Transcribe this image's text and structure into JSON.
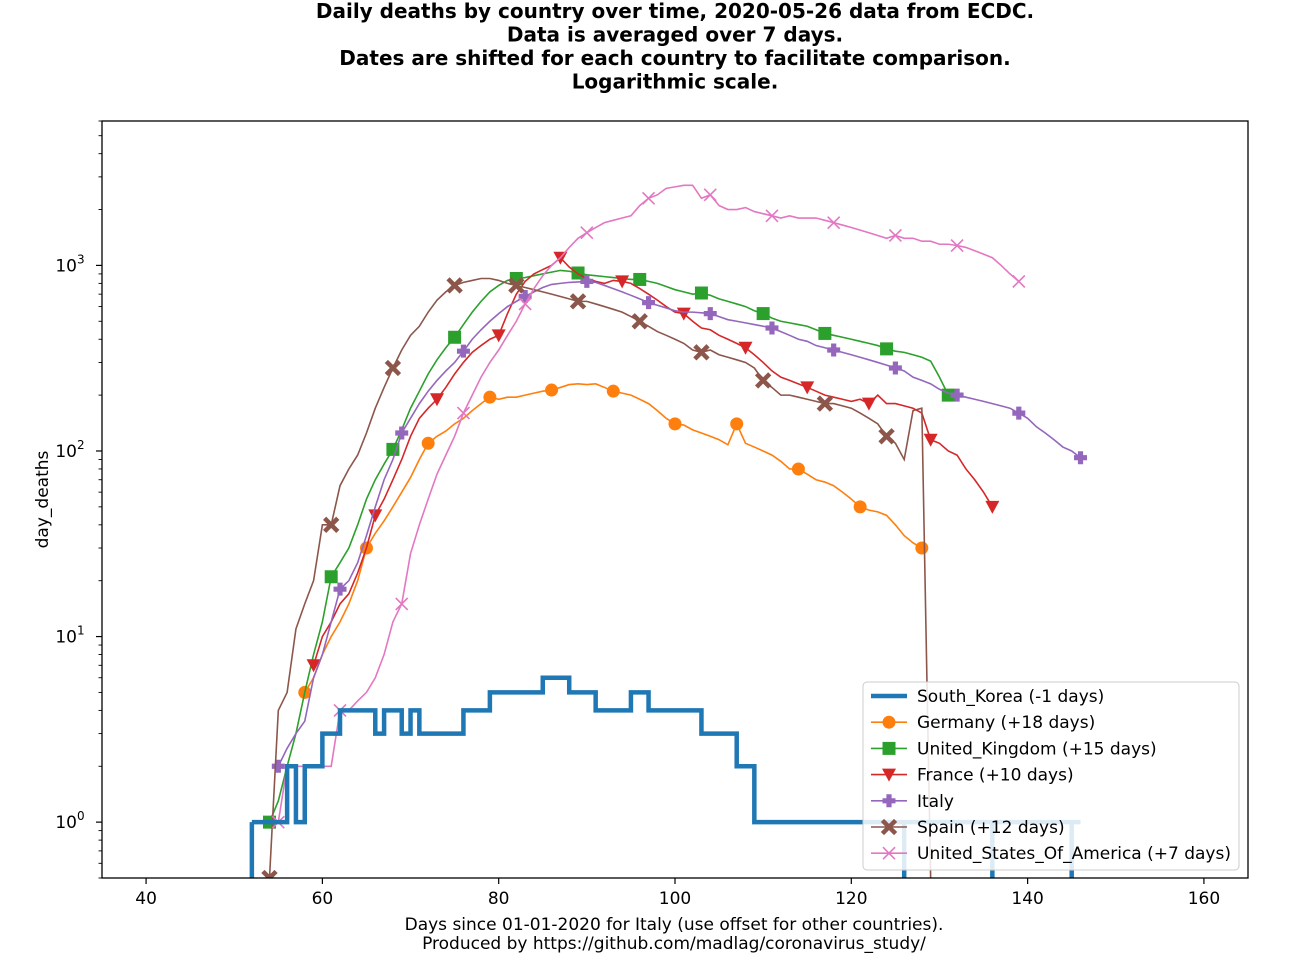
{
  "chart_data": {
    "type": "line",
    "title_lines": [
      "Daily deaths by country over time, 2020-05-26 data from ECDC.",
      "Data is averaged over 7 days.",
      "Dates are shifted for each country to facilitate comparison.",
      "Logarithmic scale."
    ],
    "xlabel": "Days since 01-01-2020 for Italy (use offset for other countries).",
    "footer": "Produced by https://github.com/madlag/coronavirus_study/",
    "ylabel": "day_deaths",
    "y_scale": "log",
    "xlim": [
      35,
      165
    ],
    "ylim": [
      0.5,
      6000
    ],
    "x_ticks": [
      40,
      60,
      80,
      100,
      120,
      140,
      160
    ],
    "y_ticks": [
      {
        "value": 1,
        "base": "10",
        "exp": "0"
      },
      {
        "value": 10,
        "base": "10",
        "exp": "1"
      },
      {
        "value": 100,
        "base": "10",
        "exp": "2"
      },
      {
        "value": 1000,
        "base": "10",
        "exp": "3"
      }
    ],
    "grid": false,
    "legend_position": "bottom-right",
    "series": [
      {
        "name": "South_Korea (-1 days)",
        "color": "#1f77b4",
        "marker": "none",
        "style": "step",
        "x": [
          52,
          53,
          54,
          55,
          56,
          57,
          58,
          59,
          60,
          61,
          62,
          63,
          64,
          65,
          66,
          67,
          68,
          69,
          70,
          71,
          72,
          73,
          74,
          75,
          76,
          77,
          78,
          79,
          80,
          81,
          82,
          83,
          84,
          85,
          86,
          87,
          88,
          89,
          90,
          91,
          92,
          93,
          94,
          95,
          96,
          97,
          98,
          99,
          100,
          101,
          102,
          103,
          104,
          105,
          106,
          107,
          108,
          109,
          110,
          126,
          127,
          136,
          137,
          145,
          146
        ],
        "y": [
          1,
          1,
          1,
          1,
          1,
          2,
          1,
          2,
          2,
          3,
          3,
          4,
          4,
          4,
          4,
          3,
          4,
          4,
          3,
          4,
          3,
          3,
          3,
          3,
          3,
          4,
          4,
          4,
          5,
          5,
          5,
          5,
          5,
          5,
          6,
          6,
          6,
          5,
          5,
          5,
          4,
          4,
          4,
          4,
          5,
          5,
          4,
          4,
          4,
          4,
          4,
          4,
          3,
          3,
          3,
          3,
          2,
          2,
          1,
          1,
          1,
          1,
          1,
          1,
          1
        ]
      },
      {
        "name": "Germany (+18 days)",
        "color": "#ff7f0e",
        "marker": "circle",
        "marker_every": 7,
        "x": [
          58,
          59,
          60,
          61,
          62,
          63,
          64,
          65,
          66,
          67,
          68,
          69,
          70,
          71,
          72,
          73,
          74,
          75,
          76,
          77,
          78,
          79,
          80,
          81,
          82,
          83,
          84,
          85,
          86,
          87,
          88,
          89,
          90,
          91,
          92,
          93,
          94,
          95,
          96,
          97,
          98,
          99,
          100,
          101,
          102,
          103,
          104,
          105,
          106,
          107,
          108,
          109,
          110,
          111,
          112,
          113,
          114,
          115,
          116,
          117,
          118,
          119,
          120,
          121,
          122,
          123,
          124,
          125,
          126,
          127,
          128
        ],
        "y": [
          5,
          6,
          8,
          10,
          12,
          15,
          20,
          30,
          36,
          42,
          50,
          60,
          72,
          90,
          110,
          120,
          128,
          140,
          150,
          165,
          180,
          195,
          190,
          195,
          195,
          200,
          205,
          210,
          213,
          220,
          228,
          230,
          228,
          230,
          220,
          210,
          205,
          200,
          190,
          180,
          165,
          150,
          140,
          138,
          130,
          125,
          120,
          115,
          108,
          140,
          110,
          105,
          100,
          95,
          88,
          80,
          80,
          75,
          70,
          68,
          65,
          60,
          55,
          50,
          48,
          47,
          45,
          40,
          35,
          32,
          30
        ]
      },
      {
        "name": "United_Kingdom (+15 days)",
        "color": "#2ca02c",
        "marker": "square",
        "marker_every": 7,
        "x": [
          54,
          55,
          56,
          57,
          58,
          59,
          60,
          61,
          62,
          63,
          64,
          65,
          66,
          67,
          68,
          69,
          70,
          71,
          72,
          73,
          74,
          75,
          76,
          77,
          78,
          79,
          80,
          81,
          82,
          83,
          84,
          85,
          86,
          87,
          88,
          89,
          90,
          91,
          92,
          93,
          94,
          95,
          96,
          97,
          98,
          99,
          100,
          101,
          102,
          103,
          104,
          105,
          106,
          107,
          108,
          109,
          110,
          111,
          112,
          113,
          114,
          115,
          116,
          117,
          118,
          119,
          120,
          121,
          122,
          123,
          124,
          125,
          126,
          127,
          128,
          129,
          130,
          131
        ],
        "y": [
          1,
          1.3,
          2,
          3,
          5,
          8,
          12,
          21,
          25,
          30,
          40,
          55,
          70,
          85,
          102,
          130,
          170,
          210,
          260,
          310,
          360,
          410,
          480,
          560,
          640,
          720,
          780,
          830,
          850,
          860,
          880,
          900,
          920,
          940,
          930,
          910,
          890,
          880,
          870,
          860,
          850,
          840,
          840,
          820,
          800,
          770,
          740,
          720,
          700,
          710,
          690,
          660,
          640,
          620,
          600,
          570,
          550,
          520,
          500,
          490,
          480,
          470,
          450,
          430,
          420,
          410,
          400,
          390,
          380,
          370,
          355,
          345,
          340,
          330,
          320,
          305,
          250,
          200
        ]
      },
      {
        "name": "France (+10 days)",
        "color": "#d62728",
        "marker": "triangle_down",
        "marker_every": 7,
        "x": [
          59,
          60,
          61,
          62,
          63,
          64,
          65,
          66,
          67,
          68,
          69,
          70,
          71,
          72,
          73,
          74,
          75,
          76,
          77,
          78,
          79,
          80,
          81,
          82,
          83,
          84,
          85,
          86,
          87,
          88,
          89,
          90,
          91,
          92,
          93,
          94,
          95,
          96,
          97,
          98,
          99,
          100,
          101,
          102,
          103,
          104,
          105,
          106,
          107,
          108,
          109,
          110,
          111,
          112,
          113,
          114,
          115,
          116,
          117,
          118,
          119,
          120,
          121,
          122,
          123,
          124,
          125,
          126,
          127,
          128,
          129,
          130,
          131,
          132,
          133,
          134,
          135,
          136
        ],
        "y": [
          7,
          10,
          12,
          15,
          17,
          22,
          30,
          45,
          55,
          70,
          90,
          120,
          150,
          170,
          190,
          220,
          260,
          300,
          340,
          370,
          400,
          420,
          550,
          700,
          820,
          900,
          950,
          1000,
          1100,
          980,
          900,
          850,
          820,
          800,
          830,
          820,
          800,
          750,
          700,
          650,
          600,
          560,
          550,
          500,
          460,
          450,
          420,
          400,
          380,
          360,
          330,
          300,
          270,
          250,
          240,
          230,
          220,
          210,
          200,
          195,
          190,
          185,
          190,
          180,
          200,
          180,
          180,
          175,
          170,
          160,
          115,
          110,
          100,
          95,
          80,
          70,
          60,
          50
        ]
      },
      {
        "name": "Italy",
        "color": "#9467bd",
        "marker": "plus_filled",
        "marker_every": 7,
        "x": [
          55,
          56,
          57,
          58,
          59,
          60,
          61,
          62,
          63,
          64,
          65,
          66,
          67,
          68,
          69,
          70,
          71,
          72,
          73,
          74,
          75,
          76,
          77,
          78,
          79,
          80,
          81,
          82,
          83,
          84,
          85,
          86,
          87,
          88,
          89,
          90,
          91,
          92,
          93,
          94,
          95,
          96,
          97,
          98,
          99,
          100,
          101,
          102,
          103,
          104,
          105,
          106,
          107,
          108,
          109,
          110,
          111,
          112,
          113,
          114,
          115,
          116,
          117,
          118,
          119,
          120,
          121,
          122,
          123,
          124,
          125,
          126,
          127,
          128,
          129,
          130,
          131,
          132,
          133,
          134,
          135,
          136,
          137,
          138,
          139,
          140,
          141,
          142,
          143,
          144,
          145,
          146
        ],
        "y": [
          2,
          2.5,
          3,
          3.5,
          6,
          8,
          12,
          18,
          20,
          25,
          35,
          50,
          70,
          90,
          125,
          150,
          180,
          210,
          240,
          270,
          300,
          345,
          400,
          450,
          500,
          550,
          600,
          640,
          680,
          720,
          760,
          790,
          800,
          810,
          815,
          820,
          810,
          780,
          750,
          720,
          690,
          660,
          630,
          610,
          590,
          570,
          560,
          560,
          555,
          550,
          530,
          510,
          500,
          490,
          480,
          470,
          460,
          440,
          420,
          400,
          390,
          370,
          360,
          350,
          340,
          330,
          320,
          310,
          300,
          290,
          280,
          270,
          250,
          240,
          230,
          215,
          205,
          200,
          195,
          190,
          185,
          180,
          175,
          170,
          160,
          150,
          135,
          125,
          115,
          105,
          100,
          92
        ]
      },
      {
        "name": "Spain (+12 days)",
        "color": "#8c564b",
        "marker": "x_filled",
        "marker_every": 7,
        "x": [
          54,
          55,
          56,
          57,
          58,
          59,
          60,
          61,
          62,
          63,
          64,
          65,
          66,
          67,
          68,
          69,
          70,
          71,
          72,
          73,
          74,
          75,
          76,
          77,
          78,
          79,
          80,
          81,
          82,
          83,
          84,
          85,
          86,
          87,
          88,
          89,
          90,
          91,
          92,
          93,
          94,
          95,
          96,
          97,
          98,
          99,
          100,
          101,
          102,
          103,
          104,
          105,
          106,
          107,
          108,
          109,
          110,
          111,
          112,
          113,
          114,
          115,
          116,
          117,
          118,
          119,
          120,
          121,
          122,
          123,
          124,
          125,
          126,
          127,
          128,
          129
        ],
        "y": [
          0.5,
          4,
          5,
          11,
          15,
          20,
          40,
          40,
          65,
          80,
          95,
          125,
          170,
          220,
          280,
          350,
          420,
          470,
          560,
          650,
          720,
          780,
          810,
          830,
          850,
          850,
          830,
          800,
          780,
          760,
          740,
          720,
          700,
          680,
          660,
          640,
          640,
          620,
          600,
          580,
          560,
          530,
          500,
          470,
          440,
          420,
          400,
          380,
          350,
          340,
          350,
          330,
          320,
          310,
          300,
          280,
          240,
          220,
          200,
          200,
          195,
          190,
          185,
          180,
          180,
          175,
          170,
          160,
          150,
          140,
          120,
          110,
          90,
          165,
          170,
          0.5
        ]
      },
      {
        "name": "United_States_Of_America (+7 days)",
        "color": "#e377c2",
        "marker": "x",
        "marker_every": 7,
        "x": [
          55,
          56,
          57,
          58,
          59,
          60,
          61,
          62,
          63,
          64,
          65,
          66,
          67,
          68,
          69,
          70,
          71,
          72,
          73,
          74,
          75,
          76,
          77,
          78,
          79,
          80,
          81,
          82,
          83,
          84,
          85,
          86,
          87,
          88,
          89,
          90,
          91,
          92,
          93,
          94,
          95,
          96,
          97,
          98,
          99,
          100,
          101,
          102,
          103,
          104,
          105,
          106,
          107,
          108,
          109,
          110,
          111,
          112,
          113,
          114,
          115,
          116,
          117,
          118,
          119,
          120,
          121,
          122,
          123,
          124,
          125,
          126,
          127,
          128,
          129,
          130,
          131,
          132,
          133,
          134,
          135,
          136,
          137,
          138,
          139
        ],
        "y": [
          1,
          2,
          2,
          2,
          2,
          2,
          2,
          4,
          4,
          4.5,
          5,
          6,
          8,
          12,
          15,
          28,
          40,
          55,
          75,
          95,
          120,
          160,
          200,
          250,
          300,
          350,
          420,
          500,
          620,
          750,
          880,
          1000,
          1100,
          1250,
          1400,
          1500,
          1600,
          1700,
          1750,
          1800,
          1850,
          2100,
          2300,
          2400,
          2600,
          2650,
          2700,
          2700,
          2300,
          2400,
          2100,
          2000,
          2000,
          2050,
          1950,
          1900,
          1850,
          1800,
          1850,
          1800,
          1800,
          1800,
          1750,
          1700,
          1650,
          1600,
          1550,
          1500,
          1450,
          1400,
          1450,
          1400,
          1400,
          1350,
          1350,
          1300,
          1300,
          1280,
          1250,
          1200,
          1150,
          1100,
          1000,
          900,
          820
        ]
      }
    ]
  }
}
